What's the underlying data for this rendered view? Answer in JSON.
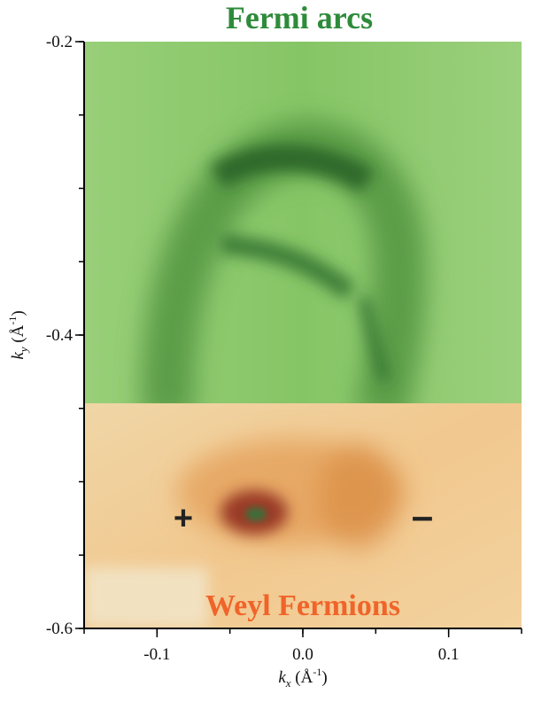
{
  "chart_data": {
    "type": "heatmap",
    "title": "Fermi arcs",
    "bottom_title": "Weyl Fermions",
    "xlabel": {
      "main": "k",
      "sub": "x",
      "unit": " (Å",
      "sup": "-1",
      "close": ")"
    },
    "ylabel": {
      "main": "k",
      "sub": "y",
      "unit": " (Å",
      "sup": "-1",
      "close": ")"
    },
    "xlim": [
      -0.15,
      0.15
    ],
    "ylim": [
      -0.6,
      -0.2
    ],
    "x_ticks": [
      {
        "value": -0.1,
        "label": "-0.1"
      },
      {
        "value": 0.0,
        "label": "0.0"
      },
      {
        "value": 0.1,
        "label": "0.1"
      }
    ],
    "y_ticks": [
      {
        "value": -0.2,
        "label": "-0.2"
      },
      {
        "value": -0.4,
        "label": "-0.4"
      },
      {
        "value": -0.6,
        "label": "-0.6"
      }
    ],
    "panels": [
      {
        "name": "Fermi arcs",
        "colormap": "green",
        "ky_range": [
          -0.45,
          -0.2
        ]
      },
      {
        "name": "Weyl Fermions",
        "colormap": "orange",
        "ky_range": [
          -0.6,
          -0.45
        ]
      }
    ],
    "weyl_points": [
      {
        "chirality": "+",
        "kx": -0.082,
        "ky": -0.525
      },
      {
        "chirality": "-",
        "kx": 0.082,
        "ky": -0.525
      }
    ],
    "colors": {
      "green_panel": "#8cc86e",
      "orange_panel": "#f0c792",
      "title_green": "#2e8b3a",
      "title_orange": "#f0642a"
    }
  }
}
